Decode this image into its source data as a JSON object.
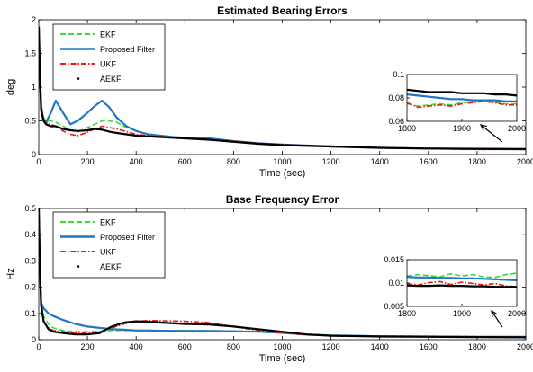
{
  "colors": {
    "ekf": "#33dd33",
    "proposed": "#1f77c4",
    "ukf": "#e41a1c",
    "aekf": "#000000"
  },
  "chart_data": [
    {
      "type": "line",
      "title": "Estimated Bearing Errors",
      "xlabel": "Time (sec)",
      "ylabel": "deg",
      "xlim": [
        0,
        2000
      ],
      "ylim": [
        0,
        2
      ],
      "xticks": [
        "0",
        "200",
        "400",
        "600",
        "800",
        "1000",
        "1200",
        "1400",
        "1600",
        "1800",
        "2000"
      ],
      "yticks": [
        "0",
        "0.5",
        "1",
        "1.5",
        "2"
      ],
      "legend": [
        "EKF",
        "Proposed Filter",
        "UKF",
        "AEKF"
      ],
      "legend_position": "top-left",
      "x": [
        0,
        5,
        10,
        20,
        30,
        50,
        70,
        100,
        130,
        160,
        200,
        230,
        260,
        290,
        320,
        360,
        400,
        450,
        500,
        550,
        600,
        700,
        800,
        900,
        1000,
        1200,
        1400,
        1600,
        1800,
        2000
      ],
      "series": [
        {
          "name": "EKF",
          "values": [
            1.9,
            1.3,
            0.75,
            0.55,
            0.5,
            0.5,
            0.48,
            0.42,
            0.36,
            0.34,
            0.4,
            0.45,
            0.5,
            0.5,
            0.48,
            0.4,
            0.35,
            0.3,
            0.28,
            0.26,
            0.25,
            0.23,
            0.2,
            0.17,
            0.15,
            0.12,
            0.1,
            0.09,
            0.08,
            0.076
          ]
        },
        {
          "name": "Proposed Filter",
          "values": [
            1.9,
            1.2,
            0.7,
            0.5,
            0.48,
            0.62,
            0.8,
            0.62,
            0.45,
            0.5,
            0.62,
            0.72,
            0.8,
            0.7,
            0.55,
            0.42,
            0.35,
            0.3,
            0.28,
            0.26,
            0.25,
            0.24,
            0.2,
            0.17,
            0.15,
            0.12,
            0.1,
            0.09,
            0.083,
            0.078
          ]
        },
        {
          "name": "UKF",
          "values": [
            1.9,
            1.25,
            0.72,
            0.52,
            0.48,
            0.45,
            0.42,
            0.35,
            0.3,
            0.28,
            0.33,
            0.38,
            0.42,
            0.4,
            0.38,
            0.34,
            0.3,
            0.28,
            0.27,
            0.25,
            0.24,
            0.22,
            0.2,
            0.17,
            0.15,
            0.12,
            0.1,
            0.09,
            0.074,
            0.076
          ]
        },
        {
          "name": "AEKF",
          "values": [
            1.9,
            1.1,
            0.65,
            0.5,
            0.45,
            0.42,
            0.42,
            0.38,
            0.36,
            0.35,
            0.36,
            0.38,
            0.37,
            0.34,
            0.32,
            0.3,
            0.28,
            0.27,
            0.26,
            0.25,
            0.24,
            0.22,
            0.19,
            0.16,
            0.14,
            0.12,
            0.1,
            0.09,
            0.086,
            0.082
          ]
        }
      ],
      "inset": {
        "xlim": [
          1800,
          2000
        ],
        "ylim": [
          0.06,
          0.1
        ],
        "xticks": [
          "1800",
          "1900",
          "2000"
        ],
        "yticks": [
          "0.06",
          "0.08",
          "0.1"
        ],
        "x": [
          1800,
          1820,
          1840,
          1860,
          1880,
          1900,
          1920,
          1940,
          1960,
          1980,
          2000
        ],
        "series": [
          {
            "name": "EKF",
            "values": [
              0.075,
              0.073,
              0.074,
              0.075,
              0.074,
              0.076,
              0.077,
              0.078,
              0.076,
              0.075,
              0.075
            ]
          },
          {
            "name": "Proposed Filter",
            "values": [
              0.083,
              0.082,
              0.081,
              0.08,
              0.079,
              0.079,
              0.078,
              0.078,
              0.078,
              0.077,
              0.077
            ]
          },
          {
            "name": "UKF",
            "values": [
              0.076,
              0.072,
              0.073,
              0.074,
              0.073,
              0.075,
              0.076,
              0.077,
              0.076,
              0.074,
              0.074
            ]
          },
          {
            "name": "AEKF",
            "values": [
              0.087,
              0.086,
              0.085,
              0.085,
              0.085,
              0.084,
              0.084,
              0.084,
              0.083,
              0.083,
              0.082
            ]
          }
        ]
      }
    },
    {
      "type": "line",
      "title": "Base Frequency Error",
      "xlabel": "Time (sec)",
      "ylabel": "Hz",
      "xlim": [
        0,
        2000
      ],
      "ylim": [
        0,
        0.5
      ],
      "xticks": [
        "0",
        "200",
        "400",
        "600",
        "800",
        "1000",
        "1200",
        "1400",
        "1600",
        "1800",
        "2000"
      ],
      "yticks": [
        "0",
        "0.1",
        "0.2",
        "0.3",
        "0.4",
        "0.5"
      ],
      "legend": [
        "EKF",
        "Proposed Filter",
        "UKF",
        "AEKF"
      ],
      "legend_position": "top-left",
      "x": [
        0,
        5,
        10,
        20,
        40,
        60,
        100,
        150,
        200,
        250,
        300,
        350,
        400,
        450,
        500,
        600,
        700,
        800,
        900,
        1000,
        1100,
        1200,
        1400,
        1600,
        1800,
        2000
      ],
      "series": [
        {
          "name": "EKF",
          "values": [
            0.5,
            0.3,
            0.15,
            0.09,
            0.06,
            0.045,
            0.035,
            0.03,
            0.03,
            0.032,
            0.035,
            0.035,
            0.035,
            0.036,
            0.035,
            0.035,
            0.034,
            0.033,
            0.03,
            0.025,
            0.02,
            0.017,
            0.014,
            0.013,
            0.012,
            0.011
          ]
        },
        {
          "name": "Proposed Filter",
          "values": [
            0.5,
            0.25,
            0.14,
            0.12,
            0.1,
            0.09,
            0.075,
            0.06,
            0.05,
            0.045,
            0.04,
            0.038,
            0.035,
            0.035,
            0.034,
            0.033,
            0.033,
            0.032,
            0.03,
            0.026,
            0.02,
            0.016,
            0.013,
            0.012,
            0.011,
            0.011
          ]
        },
        {
          "name": "UKF",
          "values": [
            0.5,
            0.3,
            0.12,
            0.07,
            0.045,
            0.035,
            0.03,
            0.025,
            0.025,
            0.03,
            0.045,
            0.06,
            0.07,
            0.073,
            0.072,
            0.07,
            0.065,
            0.05,
            0.035,
            0.025,
            0.018,
            0.015,
            0.012,
            0.011,
            0.01,
            0.009
          ]
        },
        {
          "name": "AEKF",
          "values": [
            0.5,
            0.25,
            0.13,
            0.07,
            0.04,
            0.03,
            0.025,
            0.02,
            0.02,
            0.025,
            0.05,
            0.065,
            0.07,
            0.068,
            0.065,
            0.06,
            0.058,
            0.05,
            0.04,
            0.03,
            0.02,
            0.015,
            0.012,
            0.011,
            0.01,
            0.009
          ]
        }
      ],
      "inset": {
        "xlim": [
          1800,
          2000
        ],
        "ylim": [
          0.005,
          0.015
        ],
        "xticks": [
          "1800",
          "1900",
          "2000"
        ],
        "yticks": [
          "0.005",
          "0.01",
          "0.015"
        ],
        "x": [
          1800,
          1820,
          1840,
          1860,
          1880,
          1900,
          1920,
          1940,
          1960,
          1980,
          2000
        ],
        "series": [
          {
            "name": "EKF",
            "values": [
              0.0115,
              0.0118,
              0.0116,
              0.0113,
              0.012,
              0.0115,
              0.0118,
              0.0113,
              0.0112,
              0.0118,
              0.0121
            ]
          },
          {
            "name": "Proposed Filter",
            "values": [
              0.0113,
              0.0112,
              0.0112,
              0.0111,
              0.0111,
              0.011,
              0.011,
              0.0109,
              0.0108,
              0.0107,
              0.0106
            ]
          },
          {
            "name": "UKF",
            "values": [
              0.0098,
              0.0096,
              0.0101,
              0.0103,
              0.0097,
              0.0102,
              0.0099,
              0.0096,
              0.0099,
              0.0094,
              0.0092
            ]
          },
          {
            "name": "AEKF",
            "values": [
              0.0095,
              0.0094,
              0.0094,
              0.0095,
              0.0094,
              0.0094,
              0.0093,
              0.0093,
              0.0092,
              0.0092,
              0.0092
            ]
          }
        ]
      }
    }
  ]
}
